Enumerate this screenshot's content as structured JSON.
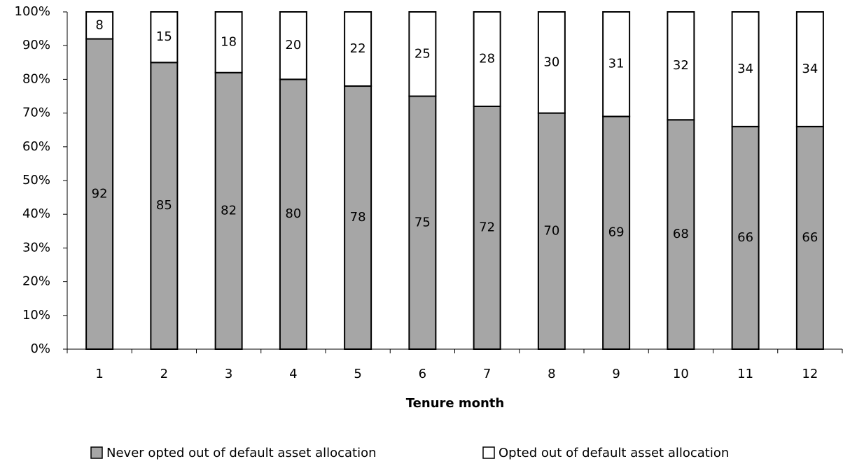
{
  "chart_data": {
    "type": "stacked_bar",
    "x_label": "Tenure month",
    "categories": [
      "1",
      "2",
      "3",
      "4",
      "5",
      "6",
      "7",
      "8",
      "9",
      "10",
      "11",
      "12"
    ],
    "series": [
      {
        "name": "Never opted out of default asset allocation",
        "color": "#a6a6a6",
        "values": [
          92,
          85,
          82,
          80,
          78,
          75,
          72,
          70,
          69,
          68,
          66,
          66
        ]
      },
      {
        "name": "Opted out of default asset allocation",
        "color": "#ffffff",
        "values": [
          8,
          15,
          18,
          20,
          22,
          25,
          28,
          30,
          31,
          32,
          34,
          34
        ]
      }
    ],
    "ylim": [
      0,
      100
    ],
    "yticks": [
      {
        "value": 0,
        "label": "0%"
      },
      {
        "value": 10,
        "label": "10%"
      },
      {
        "value": 20,
        "label": "20%"
      },
      {
        "value": 30,
        "label": "30%"
      },
      {
        "value": 40,
        "label": "40%"
      },
      {
        "value": 50,
        "label": "50%"
      },
      {
        "value": 60,
        "label": "60%"
      },
      {
        "value": 70,
        "label": "70%"
      },
      {
        "value": 80,
        "label": "80%"
      },
      {
        "value": 90,
        "label": "90%"
      },
      {
        "value": 100,
        "label": "100%"
      }
    ],
    "legend": "bottom"
  }
}
